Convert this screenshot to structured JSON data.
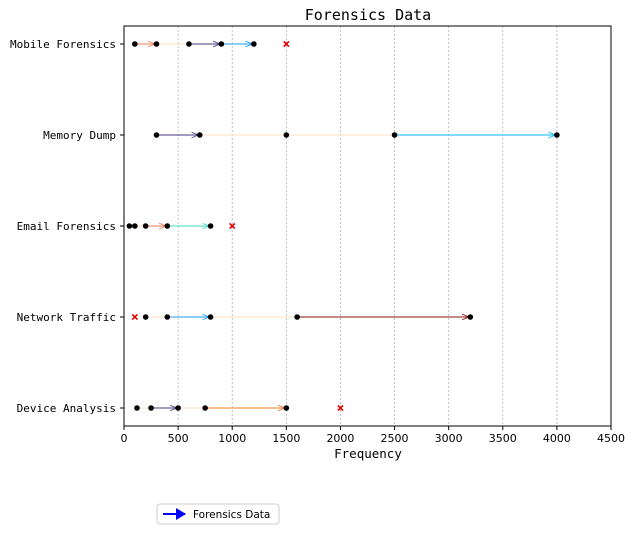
{
  "chart_data": {
    "type": "scatter",
    "title": "Forensics Data",
    "xlabel": "Frequency",
    "ylabel": "",
    "xlim": [
      0,
      4500
    ],
    "x_ticks": [
      0,
      500,
      1000,
      1500,
      2000,
      2500,
      3000,
      3500,
      4000,
      4500
    ],
    "grid": "vertical dotted",
    "legend": {
      "label": "Forensics Data",
      "position": "bottom-left",
      "color": "#0000ff"
    },
    "categories": [
      "Device Analysis",
      "Network Traffic",
      "Email Forensics",
      "Memory Dump",
      "Mobile Forensics"
    ],
    "rows": [
      {
        "category": "Device Analysis",
        "points": [
          120,
          250,
          500,
          750,
          1500
        ],
        "arrows": [
          {
            "from": 250,
            "to": 500,
            "color": "#483d8b"
          },
          {
            "from": 750,
            "to": 1500,
            "color": "#f08030"
          }
        ],
        "outliers": [
          2000
        ]
      },
      {
        "category": "Network Traffic",
        "points": [
          200,
          400,
          800,
          1600,
          3200
        ],
        "arrows": [
          {
            "from": 400,
            "to": 800,
            "color": "#1e9fff"
          },
          {
            "from": 1600,
            "to": 3200,
            "color": "#8b1a1a"
          }
        ],
        "outliers": [
          100
        ]
      },
      {
        "category": "Email Forensics",
        "points": [
          50,
          100,
          200,
          400,
          800
        ],
        "arrows": [
          {
            "from": 200,
            "to": 400,
            "color": "#f08060"
          },
          {
            "from": 400,
            "to": 800,
            "color": "#40e0d0"
          }
        ],
        "outliers": [
          1000
        ]
      },
      {
        "category": "Memory Dump",
        "points": [
          300,
          700,
          1500,
          2500,
          4000
        ],
        "arrows": [
          {
            "from": 300,
            "to": 700,
            "color": "#483d8b"
          },
          {
            "from": 2500,
            "to": 4000,
            "color": "#00bfff"
          }
        ],
        "outliers": []
      },
      {
        "category": "Mobile Forensics",
        "points": [
          100,
          300,
          600,
          900,
          1200
        ],
        "arrows": [
          {
            "from": 100,
            "to": 300,
            "color": "#f08060"
          },
          {
            "from": 600,
            "to": 900,
            "color": "#483d8b"
          },
          {
            "from": 900,
            "to": 1200,
            "color": "#1e9fff"
          }
        ],
        "outliers": [
          1500
        ]
      }
    ],
    "colors": {
      "range_line": "#fde8cc",
      "point": "#000000",
      "outlier": "#e00000"
    }
  }
}
